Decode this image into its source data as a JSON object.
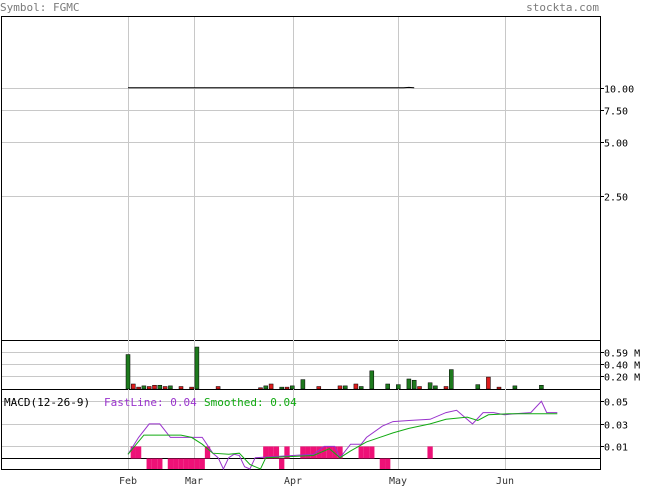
{
  "header": {
    "symbol_text": "Symbol: FGMC",
    "site": "stockta.com"
  },
  "colors": {
    "header_text": "#7a7a7a",
    "up_bar": "#1e7a1e",
    "down_bar": "#dd1c1c",
    "fast_line": "#9933cc",
    "smoothed_line": "#11aa11",
    "histogram": "#ee1177",
    "price_line": "#000000"
  },
  "chart_data": [
    {
      "type": "line",
      "panel": "price",
      "scale": "log",
      "ylim": [
        0.4,
        25
      ],
      "yticks": [
        "10.00",
        "7.50",
        "5.00",
        "2.50"
      ],
      "xticks": [
        "Feb",
        "Mar",
        "Apr",
        "May",
        "Jun"
      ],
      "series": [
        {
          "values": [
            [
              0,
              10.0
            ],
            [
              52,
              10.0
            ],
            [
              53,
              10.05
            ],
            [
              54,
              10.0
            ]
          ]
        }
      ]
    },
    {
      "type": "bar",
      "panel": "volume",
      "ylim": [
        0,
        0.75
      ],
      "yticks": [
        "0.59 M",
        "0.40 M",
        "0.20 M"
      ],
      "up_values": [
        0.55,
        0.05,
        0.06,
        0.05,
        0.67,
        0.05,
        0.03,
        0.05,
        0.15,
        0.05,
        0.04,
        0.29,
        0.08,
        0.07,
        0.16,
        0.14,
        0.1,
        0.05,
        0.31,
        0.07,
        0.05,
        0.06
      ],
      "up_at": [
        0,
        3,
        6,
        8,
        13,
        26,
        29,
        31,
        33,
        41,
        44,
        46,
        49,
        51,
        53,
        54,
        57,
        58,
        61,
        66,
        73,
        78
      ],
      "down_values": [
        0.08,
        0.03,
        0.04,
        0.06,
        0.04,
        0.04,
        0.03,
        0.04,
        0.02,
        0.08,
        0.03,
        0.04,
        0.05,
        0.08,
        0.04,
        0.04,
        0.19,
        0.03
      ],
      "down_at": [
        1,
        2,
        4,
        5,
        7,
        10,
        12,
        17,
        25,
        27,
        30,
        36,
        40,
        43,
        55,
        60,
        68,
        70
      ]
    },
    {
      "type": "line",
      "panel": "macd",
      "title": "MACD(12-26-9)",
      "fast_label": "FastLine: 0.04",
      "smooth_label": "Smoothed: 0.04",
      "ylim": [
        -0.01,
        0.06
      ],
      "yticks": [
        "0.05",
        "0.03",
        "0.01"
      ],
      "series": [
        {
          "name": "FastLine",
          "values": [
            [
              0,
              0.003
            ],
            [
              2,
              0.018
            ],
            [
              4,
              0.03
            ],
            [
              6,
              0.03
            ],
            [
              8,
              0.018
            ],
            [
              10,
              0.018
            ],
            [
              14,
              0.018
            ],
            [
              16,
              0.004
            ],
            [
              17,
              0.0
            ],
            [
              18,
              -0.01
            ],
            [
              19,
              0.0
            ],
            [
              20,
              0.003
            ],
            [
              21,
              0.002
            ],
            [
              22,
              -0.008
            ],
            [
              23,
              -0.01
            ],
            [
              24,
              0.0
            ],
            [
              35,
              0.003
            ],
            [
              37,
              0.01
            ],
            [
              39,
              0.01
            ],
            [
              40,
              0.0
            ],
            [
              42,
              0.012
            ],
            [
              44,
              0.012
            ],
            [
              45,
              0.018
            ],
            [
              48,
              0.028
            ],
            [
              50,
              0.032
            ],
            [
              53,
              0.033
            ],
            [
              57,
              0.034
            ],
            [
              60,
              0.04
            ],
            [
              62,
              0.042
            ],
            [
              65,
              0.03
            ],
            [
              67,
              0.04
            ],
            [
              69,
              0.04
            ],
            [
              71,
              0.038
            ],
            [
              73,
              0.039
            ],
            [
              76,
              0.04
            ],
            [
              78,
              0.05
            ],
            [
              79,
              0.04
            ],
            [
              81,
              0.04
            ]
          ]
        },
        {
          "name": "Smoothed",
          "values": [
            [
              0,
              0.003
            ],
            [
              3,
              0.02
            ],
            [
              10,
              0.02
            ],
            [
              12,
              0.018
            ],
            [
              14,
              0.012
            ],
            [
              16,
              0.004
            ],
            [
              19,
              0.003
            ],
            [
              21,
              0.004
            ],
            [
              23,
              -0.006
            ],
            [
              25,
              -0.01
            ],
            [
              26,
              0.0
            ],
            [
              35,
              0.002
            ],
            [
              38,
              0.008
            ],
            [
              40,
              0.0
            ],
            [
              42,
              0.006
            ],
            [
              45,
              0.014
            ],
            [
              50,
              0.022
            ],
            [
              53,
              0.026
            ],
            [
              57,
              0.03
            ],
            [
              60,
              0.034
            ],
            [
              64,
              0.036
            ],
            [
              66,
              0.033
            ],
            [
              68,
              0.038
            ],
            [
              72,
              0.039
            ],
            [
              81,
              0.039
            ]
          ]
        }
      ],
      "histogram": [
        [
          1,
          0.01
        ],
        [
          2,
          0.01
        ],
        [
          4,
          -0.01
        ],
        [
          5,
          -0.01
        ],
        [
          6,
          -0.01
        ],
        [
          8,
          -0.01
        ],
        [
          9,
          -0.01
        ],
        [
          10,
          -0.01
        ],
        [
          11,
          -0.01
        ],
        [
          12,
          -0.01
        ],
        [
          13,
          -0.01
        ],
        [
          14,
          -0.01
        ],
        [
          15,
          0.01
        ],
        [
          26,
          0.01
        ],
        [
          27,
          0.01
        ],
        [
          28,
          0.01
        ],
        [
          29,
          -0.01
        ],
        [
          30,
          0.01
        ],
        [
          33,
          0.01
        ],
        [
          34,
          0.01
        ],
        [
          35,
          0.01
        ],
        [
          36,
          0.01
        ],
        [
          37,
          0.01
        ],
        [
          38,
          0.01
        ],
        [
          39,
          0.01
        ],
        [
          40,
          0.01
        ],
        [
          44,
          0.01
        ],
        [
          45,
          0.01
        ],
        [
          46,
          0.01
        ],
        [
          48,
          -0.01
        ],
        [
          49,
          -0.01
        ],
        [
          57,
          0.01
        ]
      ]
    }
  ]
}
